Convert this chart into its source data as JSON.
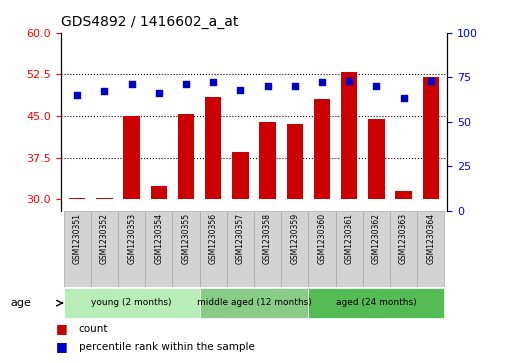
{
  "title": "GDS4892 / 1416602_a_at",
  "samples": [
    "GSM1230351",
    "GSM1230352",
    "GSM1230353",
    "GSM1230354",
    "GSM1230355",
    "GSM1230356",
    "GSM1230357",
    "GSM1230358",
    "GSM1230359",
    "GSM1230360",
    "GSM1230361",
    "GSM1230362",
    "GSM1230363",
    "GSM1230364"
  ],
  "count_values": [
    30.2,
    30.2,
    45.0,
    32.5,
    45.3,
    48.5,
    38.5,
    44.0,
    43.5,
    48.0,
    53.0,
    44.5,
    31.5,
    52.0
  ],
  "percentile_values": [
    65,
    67,
    71,
    66,
    71,
    72,
    68,
    70,
    70,
    72,
    73,
    70,
    63,
    73
  ],
  "ylim_left": [
    28,
    60
  ],
  "ylim_right": [
    0,
    100
  ],
  "yticks_left": [
    30,
    37.5,
    45,
    52.5,
    60
  ],
  "yticks_right": [
    0,
    25,
    50,
    75,
    100
  ],
  "bar_color": "#cc0000",
  "dot_color": "#0000cc",
  "hlines": [
    37.5,
    45.0,
    52.5
  ],
  "base_value": 30,
  "group_spans": [
    {
      "start": 0,
      "end": 5,
      "label": "young (2 months)",
      "color": "#b8edb8"
    },
    {
      "start": 5,
      "end": 9,
      "label": "middle aged (12 months)",
      "color": "#88cc88"
    },
    {
      "start": 9,
      "end": 14,
      "label": "aged (24 months)",
      "color": "#55bb55"
    }
  ],
  "legend_count": "count",
  "legend_percentile": "percentile rank within the sample",
  "age_label": "age"
}
